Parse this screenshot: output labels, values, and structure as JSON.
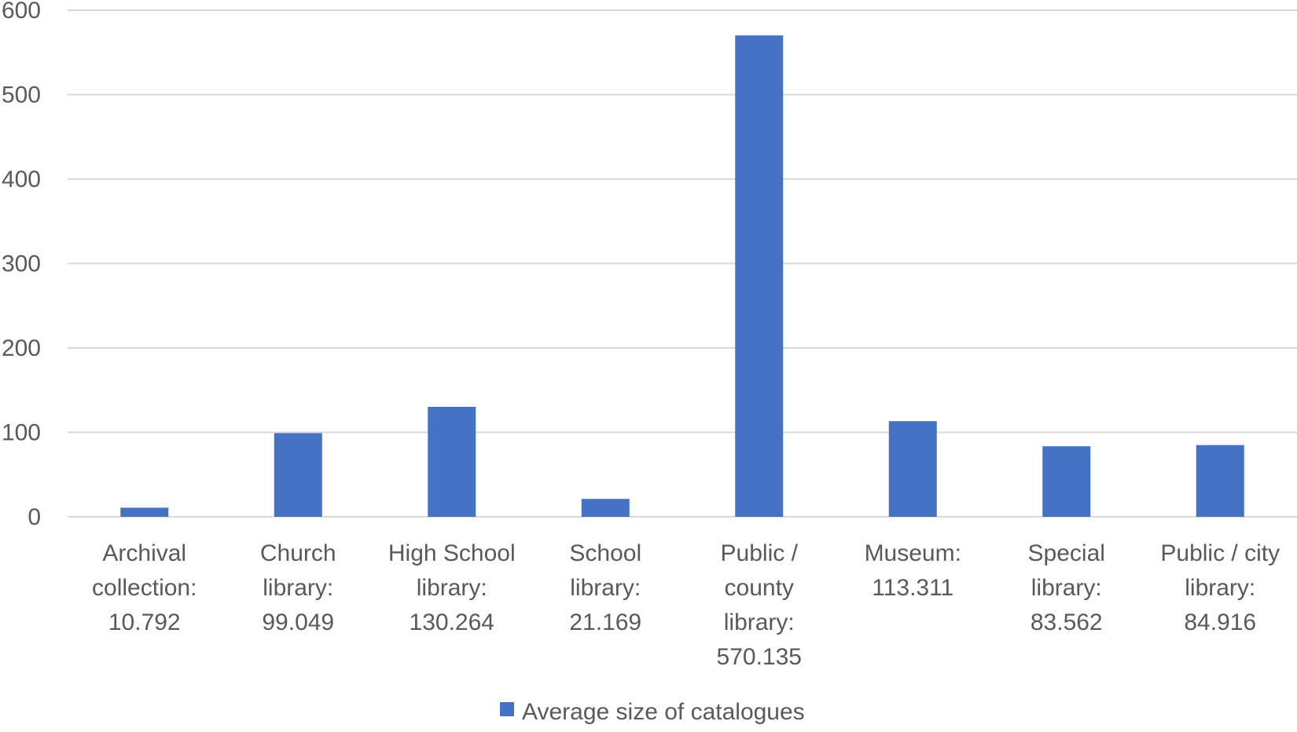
{
  "chart_data": {
    "type": "bar",
    "categories": [
      "Archival collection: 10.792",
      "Church library: 99.049",
      "High School library: 130.264",
      "School library: 21.169",
      "Public / county library: 570.135",
      "Museum: 113.311",
      "Special library: 83.562",
      "Public / city library: 84.916"
    ],
    "category_lines": [
      [
        "Archival",
        "collection:",
        "10.792"
      ],
      [
        "Church",
        "library:",
        "99.049"
      ],
      [
        "High School",
        "library:",
        "130.264"
      ],
      [
        "School",
        "library:",
        "21.169"
      ],
      [
        "Public /",
        "county",
        "library:",
        "570.135"
      ],
      [
        "Museum:",
        "113.311"
      ],
      [
        "Special",
        "library:",
        "83.562"
      ],
      [
        "Public / city",
        "library:",
        "84.916"
      ]
    ],
    "series": [
      {
        "name": "Average size of catalogues",
        "values": [
          10.792,
          99.049,
          130.264,
          21.169,
          570.135,
          113.311,
          83.562,
          84.916
        ],
        "color": "#4472C4"
      }
    ],
    "ylim": [
      0,
      600
    ],
    "yticks": [
      0,
      100,
      200,
      300,
      400,
      500,
      600
    ],
    "grid": true,
    "gridline_color": "#D9D9D9",
    "legend_position": "bottom-center",
    "title": "",
    "xlabel": "",
    "ylabel": ""
  }
}
